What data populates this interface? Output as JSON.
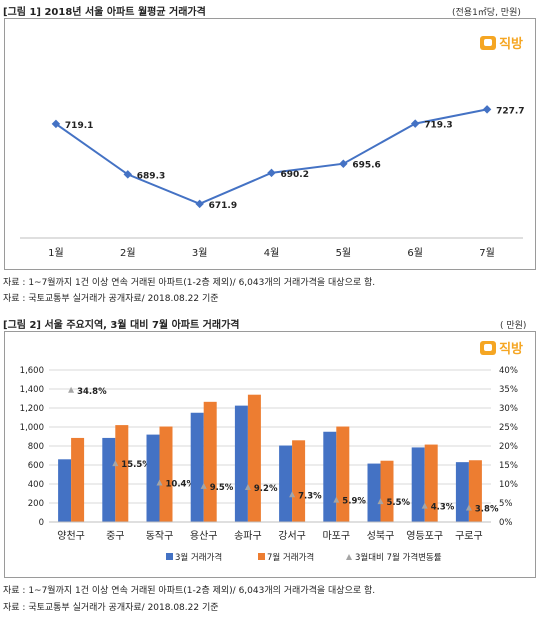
{
  "figure1": {
    "title": "[그림 1] 2018년 서울 아파트 월평균 거래가격",
    "unit": "(전용1㎡당, 만원)",
    "logo": "직방",
    "sources": [
      "자료 : 1~7월까지 1건 이상 연속 거래된 아파트(1-2층 제외)/ 6,043개의 거래가격을 대상으로 함.",
      "자료 : 국토교통부 실거래가 공개자료/ 2018.08.22 기준"
    ]
  },
  "figure2": {
    "title": "[그림 2] 서울 주요지역, 3월 대비 7월 아파트 거래가격",
    "unit": "( 만원)",
    "logo": "직방",
    "sources": [
      "자료 : 1~7월까지 1건 이상 연속 거래된 아파트(1-2층 제외)/ 6,043개의 거래가격을 대상으로 함.",
      "자료 : 국토교통부 실거래가 공개자료/ 2018.08.22 기준"
    ]
  },
  "chart_data": [
    {
      "type": "line",
      "title": "",
      "x": [
        "1월",
        "2월",
        "3월",
        "4월",
        "5월",
        "6월",
        "7월"
      ],
      "series": [
        {
          "values": [
            719.1,
            689.3,
            671.9,
            690.2,
            695.6,
            719.3,
            727.7
          ],
          "labels": [
            "719.1",
            "689.3",
            "671.9",
            "690.2",
            "695.6",
            "719.3",
            "727.7"
          ],
          "color": "#4472c4"
        }
      ],
      "ylim": [
        660,
        735
      ],
      "grid": false
    },
    {
      "type": "bar",
      "categories": [
        "양천구",
        "중구",
        "동작구",
        "용산구",
        "송파구",
        "강서구",
        "마포구",
        "성북구",
        "영등포구",
        "구로구"
      ],
      "series": [
        {
          "name": "3월 거래가격",
          "color": "#4472c4",
          "values": [
            660,
            885,
            920,
            1150,
            1225,
            805,
            950,
            615,
            785,
            630
          ]
        },
        {
          "name": "7월 거래가격",
          "color": "#ed7d31",
          "values": [
            885,
            1020,
            1005,
            1265,
            1340,
            860,
            1005,
            645,
            815,
            650
          ]
        },
        {
          "name": "3월대비 7월 가격변동률",
          "color": "#a5a5a5",
          "axis": "right",
          "values": [
            34.8,
            15.5,
            10.4,
            9.5,
            9.2,
            7.3,
            5.9,
            5.5,
            4.3,
            3.8
          ],
          "labels": [
            "34.8%",
            "15.5%",
            "10.4%",
            "9.5%",
            "9.2%",
            "7.3%",
            "5.9%",
            "5.5%",
            "4.3%",
            "3.8%"
          ]
        }
      ],
      "y_ticks": [
        "0",
        "200",
        "400",
        "600",
        "800",
        "1,000",
        "1,200",
        "1,400",
        "1,600"
      ],
      "y2_ticks": [
        "0%",
        "5%",
        "10%",
        "15%",
        "20%",
        "25%",
        "30%",
        "35%",
        "40%"
      ],
      "ylim": [
        0,
        1600
      ],
      "y2lim": [
        0,
        40
      ],
      "legend": "bottom",
      "grid": true
    }
  ]
}
